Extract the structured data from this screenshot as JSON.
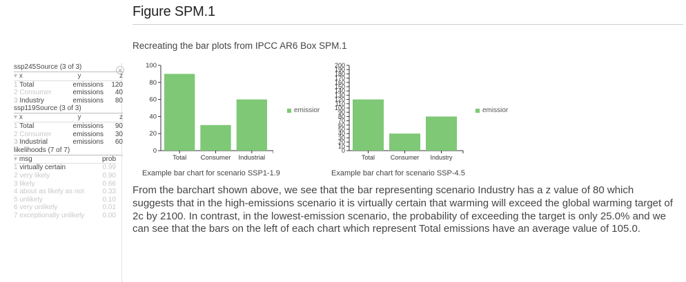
{
  "header": {
    "title": "Figure SPM.1",
    "subtitle": "Recreating the bar plots from IPCC AR6 Box SPM.1"
  },
  "tables": {
    "ssp245": {
      "title": "ssp245Source (3 of 3)",
      "columns": [
        "x",
        "y",
        "z"
      ],
      "rows": [
        {
          "idx": "1",
          "x": "Total",
          "y": "emissions",
          "z": "120"
        },
        {
          "idx": "2",
          "x": "Consumer",
          "y": "emissions",
          "z": "40"
        },
        {
          "idx": "3",
          "x": "Industry",
          "y": "emissions",
          "z": "80"
        }
      ]
    },
    "ssp119": {
      "title": "ssp119Source (3 of 3)",
      "columns": [
        "x",
        "y",
        "z"
      ],
      "rows": [
        {
          "idx": "1",
          "x": "Total",
          "y": "emissions",
          "z": "90"
        },
        {
          "idx": "2",
          "x": "Consumer",
          "y": "emissions",
          "z": "30"
        },
        {
          "idx": "3",
          "x": "Industrial",
          "y": "emissions",
          "z": "60"
        }
      ]
    },
    "likelihoods": {
      "title": "likelihoods (7 of 7)",
      "columns": [
        "msg",
        "prob"
      ],
      "rows": [
        {
          "idx": "1",
          "msg": "virtually certain",
          "prob": "0.99"
        },
        {
          "idx": "2",
          "msg": "very likely",
          "prob": "0.90"
        },
        {
          "idx": "3",
          "msg": "likely",
          "prob": "0.66"
        },
        {
          "idx": "4",
          "msg": "about as likely as not",
          "prob": "0.33"
        },
        {
          "idx": "5",
          "msg": "unlikely",
          "prob": "0.10"
        },
        {
          "idx": "6",
          "msg": "very unlikely",
          "prob": "0.01"
        },
        {
          "idx": "7",
          "msg": "exceptionally unlikely",
          "prob": "0.00"
        }
      ]
    }
  },
  "chart_data": [
    {
      "type": "bar",
      "categories": [
        "Total",
        "Consumer",
        "Industrial"
      ],
      "values": [
        90,
        30,
        60
      ],
      "ylim": [
        0,
        100
      ],
      "yticks": [
        0,
        20,
        40,
        60,
        80,
        100
      ],
      "legend": "emissions",
      "legend_shown": "emissior",
      "legend_placement": "right",
      "color": "#7ec876",
      "caption": "Example bar chart for scenario SSP1-1.9"
    },
    {
      "type": "bar",
      "categories": [
        "Total",
        "Consumer",
        "Industry"
      ],
      "values": [
        120,
        40,
        80
      ],
      "ylim": [
        0,
        200
      ],
      "yticks": [
        0,
        10,
        20,
        30,
        40,
        50,
        60,
        70,
        80,
        90,
        100,
        110,
        120,
        130,
        140,
        150,
        160,
        170,
        180,
        190,
        200
      ],
      "legend": "emissions",
      "legend_shown": "emissior",
      "legend_placement": "right",
      "color": "#7ec876",
      "caption": "Example bar chart for scenario SSP-4.5"
    }
  ],
  "paragraph": "From the barchart shown above, we see that the bar representing scenario Industry has a z value of 80 which suggests that in the high-emissions scenario it is virtually certain that warming will exceed the global warming target of 2c by 2100. In contrast, in the lowest-emission scenario, the probability of exceeding the target is only 25.0% and we can see that the bars on the left of each chart which represent Total emissions have an average value of 105.0."
}
